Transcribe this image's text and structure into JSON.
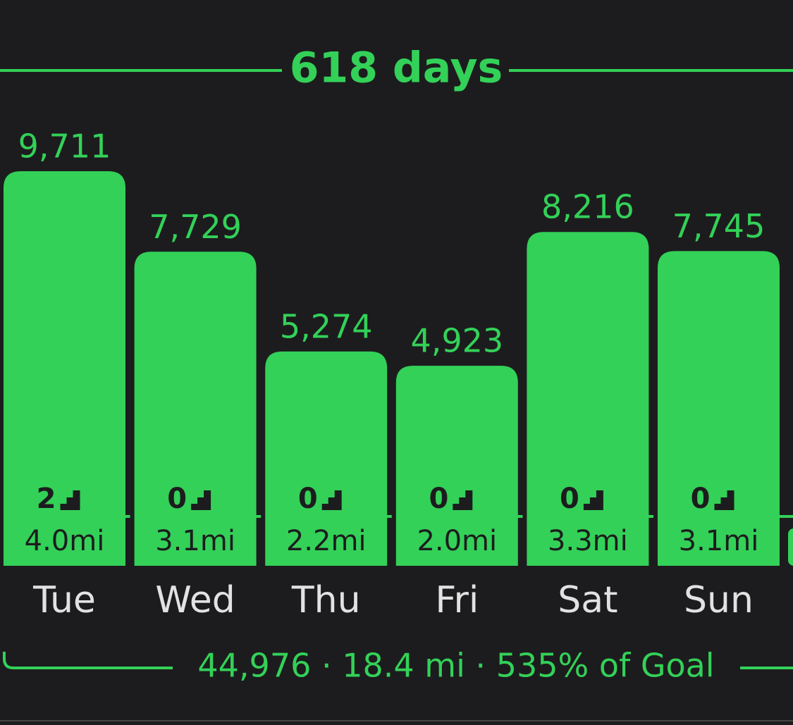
{
  "chart_data": {
    "type": "bar",
    "title": "618 days",
    "categories": [
      "Tue",
      "Wed",
      "Thu",
      "Fri",
      "Sat",
      "Sun"
    ],
    "values": [
      9711,
      7729,
      5274,
      4923,
      8216,
      7745
    ],
    "value_labels": [
      "9,711",
      "7,729",
      "5,274",
      "4,923",
      "8,216",
      "7,745"
    ],
    "floors": [
      2,
      0,
      0,
      0,
      0,
      0
    ],
    "miles": [
      4.0,
      3.1,
      2.2,
      2.0,
      3.3,
      3.1
    ],
    "miles_labels": [
      "4.0mi",
      "3.1mi",
      "2.2mi",
      "2.0mi",
      "3.3mi",
      "3.1mi"
    ],
    "summary": "44,976 · 18.4 mi · 535% of Goal",
    "color": "#33d158"
  }
}
